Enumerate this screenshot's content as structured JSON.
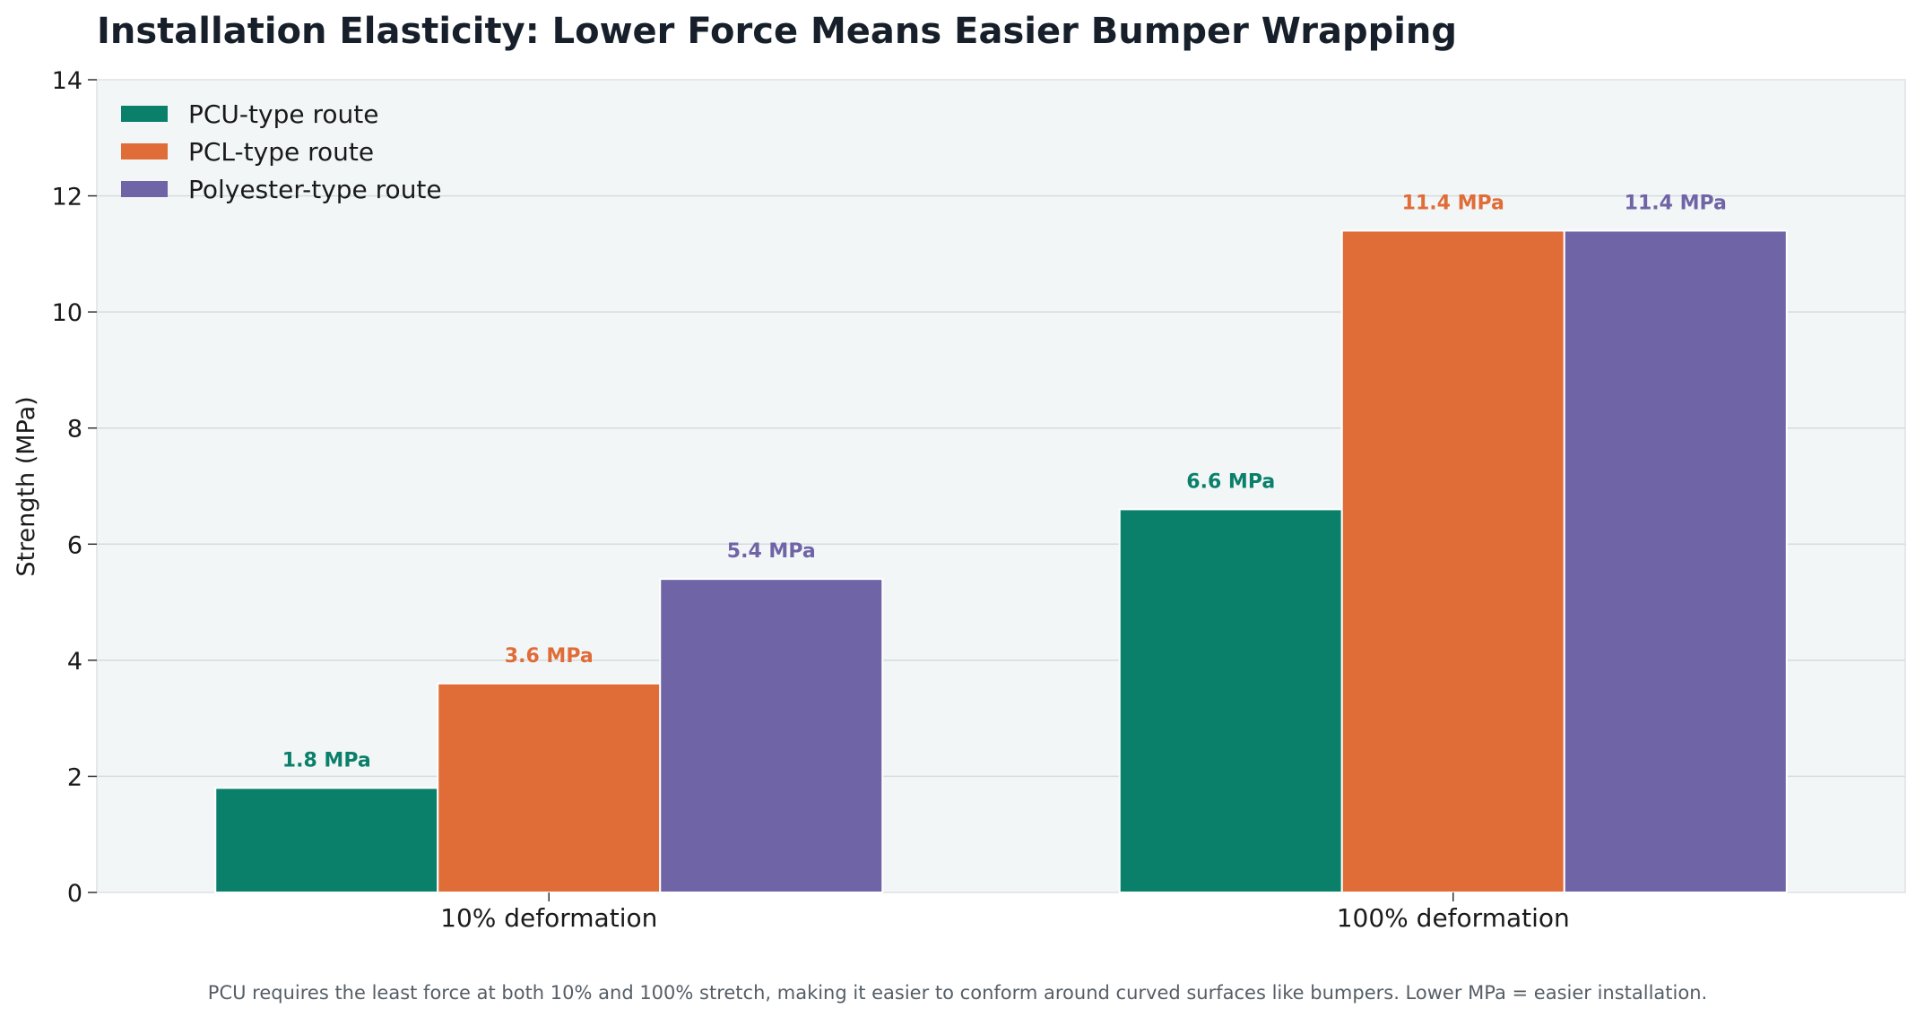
{
  "chart_data": {
    "type": "bar",
    "title": "Installation Elasticity: Lower Force Means Easier Bumper Wrapping",
    "xlabel": "",
    "ylabel": "Strength (MPa)",
    "ylim": [
      0,
      14
    ],
    "yticks": [
      "0",
      "2",
      "4",
      "6",
      "8",
      "10",
      "12",
      "14"
    ],
    "categories": [
      "10% deformation",
      "100% deformation"
    ],
    "series": [
      {
        "name": "PCU-type route",
        "color": "#0a806b",
        "values": [
          1.8,
          6.6
        ],
        "labels": [
          "1.8 MPa",
          "6.6 MPa"
        ]
      },
      {
        "name": "PCL-type route",
        "color": "#e06c38",
        "values": [
          3.6,
          11.4
        ],
        "labels": [
          "3.6 MPa",
          "11.4 MPa"
        ]
      },
      {
        "name": "Polyester-type route",
        "color": "#6f64a6",
        "values": [
          5.4,
          11.4
        ],
        "labels": [
          "5.4 MPa",
          "11.4 MPa"
        ]
      }
    ],
    "grid": true,
    "legend_position": "top-left",
    "caption": "PCU requires the least force at both 10% and 100% stretch, making it easier to conform around curved surfaces like bumpers. Lower MPa = easier installation."
  },
  "colors": {
    "plot_background": "#f3f6f7",
    "grid": "#d5dbdf"
  }
}
